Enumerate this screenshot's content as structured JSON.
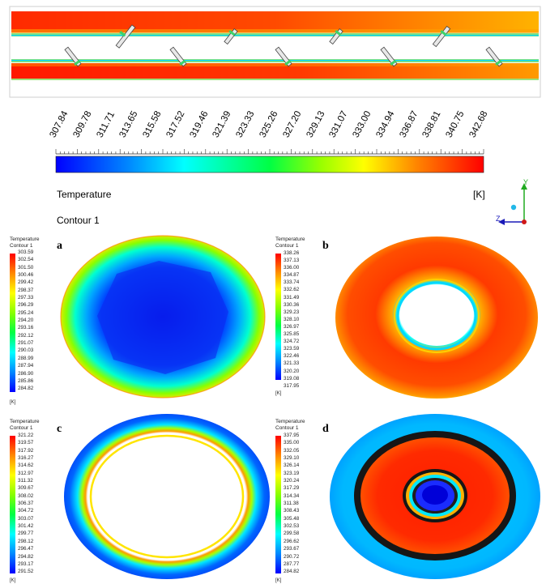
{
  "top_colorbar": {
    "ticks": [
      "307.84",
      "309.78",
      "311.71",
      "313.65",
      "315.58",
      "317.52",
      "319.46",
      "321.39",
      "323.33",
      "325.26",
      "327.20",
      "329.13",
      "331.07",
      "333.00",
      "334.94",
      "336.87",
      "338.81",
      "340.75",
      "342.68"
    ],
    "title": "Temperature",
    "unit": "[K]",
    "contour_label": "Contour 1"
  },
  "triad": {
    "y": "Y",
    "z": "Z"
  },
  "panels": [
    {
      "letter": "a",
      "header": [
        "Temperature",
        "Contour 1"
      ],
      "unit": "[K]",
      "values": [
        "303.59",
        "302.54",
        "301.50",
        "300.46",
        "299.42",
        "298.37",
        "297.33",
        "296.29",
        "295.24",
        "294.20",
        "293.16",
        "292.12",
        "291.07",
        "290.03",
        "288.99",
        "287.94",
        "286.90",
        "285.86",
        "284.82"
      ]
    },
    {
      "letter": "b",
      "header": [
        "Temperature",
        "Contour 1"
      ],
      "unit": "[K]",
      "values": [
        "338.26",
        "337.13",
        "336.00",
        "334.87",
        "333.74",
        "332.62",
        "331.49",
        "330.36",
        "329.23",
        "328.10",
        "326.97",
        "325.85",
        "324.72",
        "323.59",
        "322.46",
        "321.33",
        "320.20",
        "319.08",
        "317.95"
      ]
    },
    {
      "letter": "c",
      "header": [
        "Temperature",
        "Contour 1"
      ],
      "unit": "[K]",
      "values": [
        "321.22",
        "319.57",
        "317.92",
        "316.27",
        "314.62",
        "312.97",
        "311.32",
        "309.67",
        "308.02",
        "306.37",
        "304.72",
        "303.07",
        "301.42",
        "299.77",
        "298.12",
        "296.47",
        "294.82",
        "293.17",
        "291.52"
      ]
    },
    {
      "letter": "d",
      "header": [
        "Temperature",
        "Contour 1"
      ],
      "unit": "[K]",
      "values": [
        "337.95",
        "335.00",
        "332.05",
        "329.10",
        "326.14",
        "323.19",
        "320.24",
        "317.29",
        "314.34",
        "311.38",
        "308.43",
        "305.48",
        "302.53",
        "299.58",
        "296.62",
        "293.67",
        "290.72",
        "287.77",
        "284.82"
      ]
    }
  ],
  "colors": {
    "scale": [
      "#0000ff",
      "#0055ff",
      "#00aaff",
      "#00ffff",
      "#00ffaa",
      "#00ff55",
      "#00ff00",
      "#55ff00",
      "#aaff00",
      "#ffff00",
      "#ffaa00",
      "#ff5500",
      "#ff0000"
    ]
  }
}
